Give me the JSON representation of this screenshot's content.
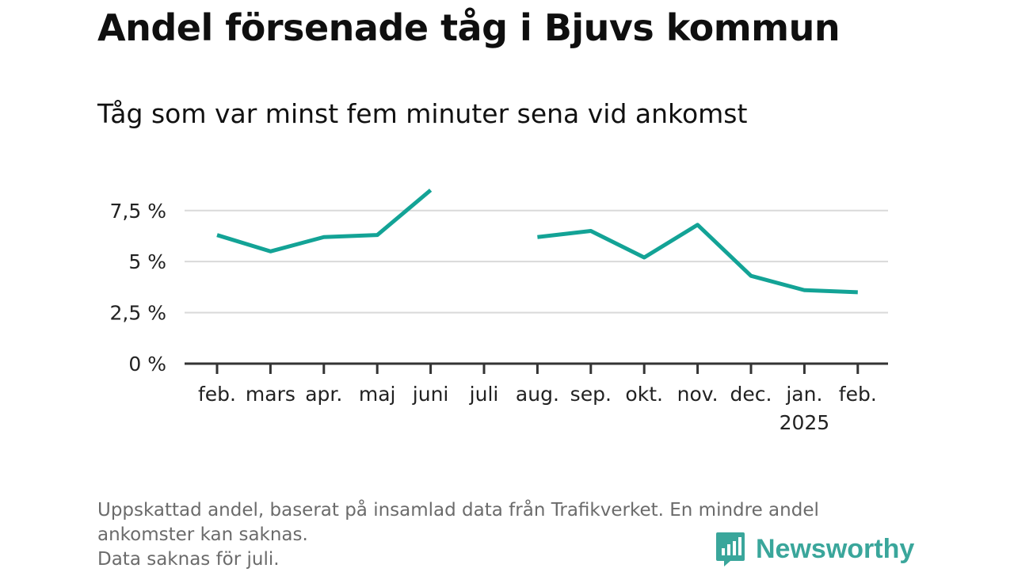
{
  "title": "Andel försenade tåg i Bjuvs kommun",
  "subtitle": "Tåg som var minst fem minuter sena vid ankomst",
  "footnote": {
    "line1": "Uppskattad andel, baserat på insamlad data från Trafikverket. En mindre andel",
    "line2": "ankomster kan saknas.",
    "line3": "Data saknas för juli."
  },
  "brand": {
    "name": "Newsworthy",
    "icon": "newsworthy-logo-icon",
    "color": "#3aa69b"
  },
  "chart_data": {
    "type": "line",
    "title": "Andel försenade tåg i Bjuvs kommun",
    "subtitle": "Tåg som var minst fem minuter sena vid ankomst",
    "categories": [
      "feb.",
      "mars",
      "apr.",
      "maj",
      "juni",
      "juli",
      "aug.",
      "sep.",
      "okt.",
      "nov.",
      "dec.",
      "jan.",
      "feb."
    ],
    "year_labels": [
      "",
      "",
      "",
      "",
      "",
      "",
      "",
      "",
      "",
      "",
      "",
      "2025",
      ""
    ],
    "values": [
      6.3,
      5.5,
      6.2,
      6.3,
      8.5,
      null,
      6.2,
      6.5,
      5.2,
      6.8,
      4.3,
      3.6,
      3.5
    ],
    "ylim": [
      0,
      8.5
    ],
    "yticks": [
      0,
      2.5,
      5,
      7.5
    ],
    "ytick_labels": [
      "0 %",
      "2,5 %",
      "5 %",
      "7,5 %"
    ],
    "line_color": "#13a396",
    "grid": true,
    "legend": "none"
  }
}
